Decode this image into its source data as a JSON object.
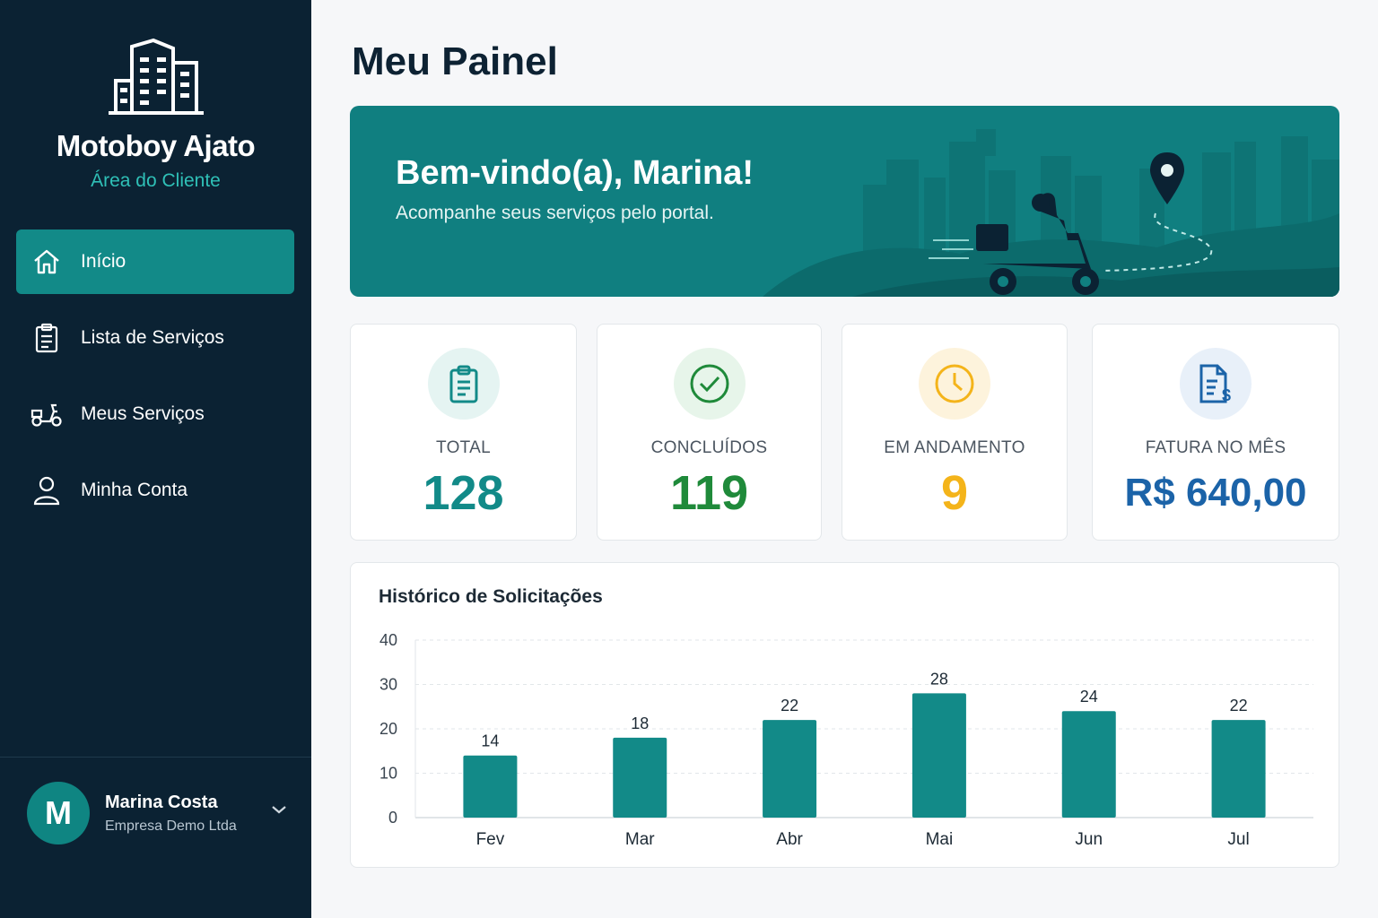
{
  "sidebar": {
    "brand": "Motoboy Ajato",
    "subtitle": "Área do Cliente",
    "items": [
      {
        "label": "Início",
        "icon": "home-icon",
        "active": true
      },
      {
        "label": "Lista de Serviços",
        "icon": "clipboard-icon",
        "active": false
      },
      {
        "label": "Meus Serviços",
        "icon": "scooter-icon",
        "active": false
      },
      {
        "label": "Minha Conta",
        "icon": "user-icon",
        "active": false
      }
    ],
    "user": {
      "initial": "M",
      "name": "Marina Costa",
      "company": "Empresa Demo Ltda"
    }
  },
  "main": {
    "title": "Meu Painel",
    "hero": {
      "title": "Bem-vindo(a), Marina!",
      "subtitle": "Acompanhe seus serviços pelo portal."
    },
    "stats": [
      {
        "label": "TOTAL",
        "value": "128",
        "icon": "clipboard-icon",
        "color": "#128a88"
      },
      {
        "label": "CONCLUÍDOS",
        "value": "119",
        "icon": "check-circle-icon",
        "color": "#1f8a3a"
      },
      {
        "label": "EM ANDAMENTO",
        "value": "9",
        "icon": "clock-icon",
        "color": "#f4b41a"
      },
      {
        "label": "FATURA NO MÊS",
        "value": "R$ 640,00",
        "icon": "invoice-icon",
        "color": "#1b63a8"
      }
    ]
  },
  "colors": {
    "sidebar": "#0b2233",
    "accent": "#128a88",
    "bar": "#128a88"
  },
  "chart_data": {
    "type": "bar",
    "title": "Histórico de Solicitações",
    "categories": [
      "Fev",
      "Mar",
      "Abr",
      "Mai",
      "Jun",
      "Jul"
    ],
    "values": [
      14,
      18,
      22,
      28,
      24,
      22
    ],
    "ylim": [
      0,
      40
    ],
    "yticks": [
      0,
      10,
      20,
      30,
      40
    ],
    "grid": true,
    "xlabel": "",
    "ylabel": ""
  }
}
